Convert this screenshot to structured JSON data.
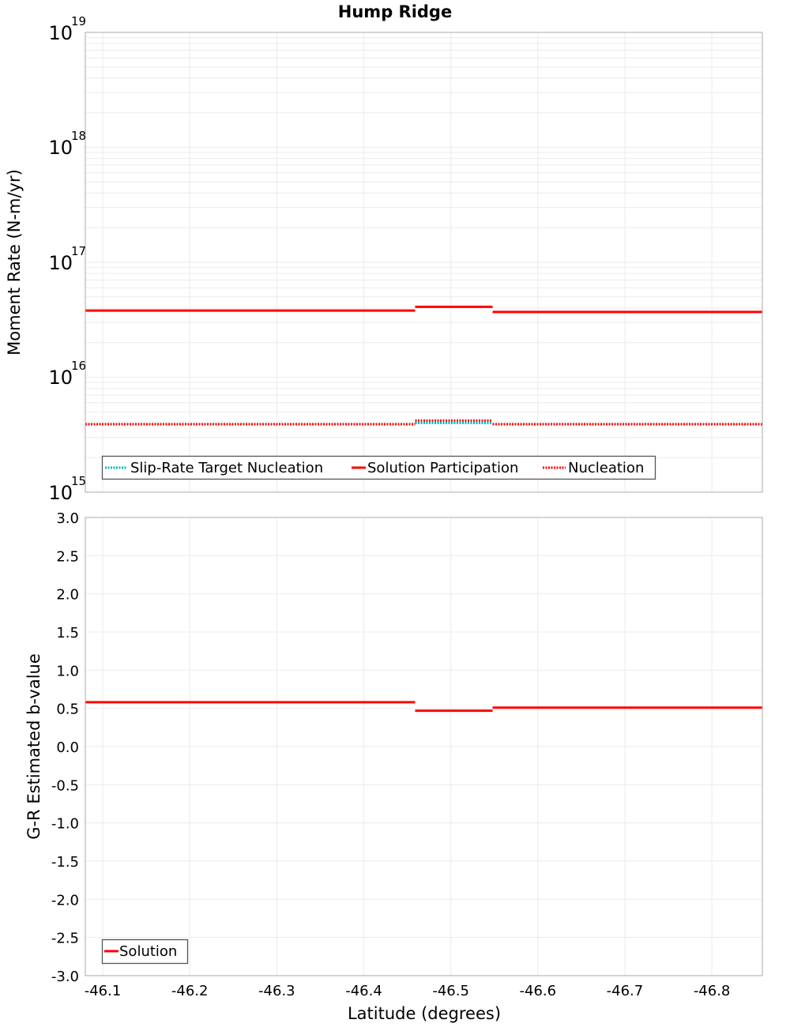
{
  "title": "Hump Ridge",
  "colors": {
    "solution": "#ff0000",
    "nucleation": "#ff0000",
    "target": "#00b7c3",
    "grid": "#ebebeb",
    "frame": "#aaaaaa"
  },
  "chart_data": [
    {
      "type": "line",
      "title": "Hump Ridge",
      "xlabel": "Latitude (degrees)",
      "ylabel": "Moment Rate (N-m/yr)",
      "yscale": "log",
      "ylim": [
        1000000000000000.0,
        1e+19
      ],
      "xlim": [
        -46.08,
        -46.858
      ],
      "y_tick_labels": [
        "10^15",
        "10^16",
        "10^17",
        "10^18",
        "10^19"
      ],
      "legend": [
        "Slip-Rate Target Nucleation",
        "Solution Participation",
        "Nucleation"
      ],
      "legend_position": "lower left",
      "grid": true,
      "series": [
        {
          "name": "Slip-Rate Target Nucleation",
          "style": "dotted",
          "color": "#00b7c3",
          "segments": [
            {
              "x": [
                -46.08,
                -46.459
              ],
              "y": 3900000000000000.0
            },
            {
              "x": [
                -46.459,
                -46.548
              ],
              "y": 4000000000000000.0
            },
            {
              "x": [
                -46.548,
                -46.858
              ],
              "y": 3900000000000000.0
            }
          ]
        },
        {
          "name": "Solution Participation",
          "style": "solid",
          "color": "#ff0000",
          "segments": [
            {
              "x": [
                -46.08,
                -46.459
              ],
              "y": 3.8e+16
            },
            {
              "x": [
                -46.459,
                -46.548
              ],
              "y": 4.1e+16
            },
            {
              "x": [
                -46.548,
                -46.858
              ],
              "y": 3.7e+16
            }
          ]
        },
        {
          "name": "Nucleation",
          "style": "dotted",
          "color": "#ff0000",
          "segments": [
            {
              "x": [
                -46.08,
                -46.459
              ],
              "y": 3900000000000000.0
            },
            {
              "x": [
                -46.459,
                -46.548
              ],
              "y": 4200000000000000.0
            },
            {
              "x": [
                -46.548,
                -46.858
              ],
              "y": 3900000000000000.0
            }
          ]
        }
      ]
    },
    {
      "type": "line",
      "title": "",
      "xlabel": "Latitude (degrees)",
      "ylabel": "G-R Estimated b-value",
      "ylim": [
        -3.0,
        3.0
      ],
      "xlim": [
        -46.08,
        -46.858
      ],
      "x_tick_labels": [
        "-46.1",
        "-46.2",
        "-46.3",
        "-46.4",
        "-46.5",
        "-46.6",
        "-46.7",
        "-46.8"
      ],
      "y_tick_labels": [
        "3.0",
        "2.5",
        "2.0",
        "1.5",
        "1.0",
        "0.5",
        "0.0",
        "-0.5",
        "-1.0",
        "-1.5",
        "-2.0",
        "-2.5",
        "-3.0"
      ],
      "legend": [
        "Solution"
      ],
      "legend_position": "lower left",
      "grid": true,
      "series": [
        {
          "name": "Solution",
          "style": "solid",
          "color": "#ff0000",
          "segments": [
            {
              "x": [
                -46.08,
                -46.459
              ],
              "y": 0.58
            },
            {
              "x": [
                -46.459,
                -46.548
              ],
              "y": 0.47
            },
            {
              "x": [
                -46.548,
                -46.858
              ],
              "y": 0.51
            }
          ]
        }
      ]
    }
  ],
  "top_chart": {
    "y_axis_label": "Moment Rate (N-m/yr)",
    "y_ticks": [
      {
        "base": "10",
        "exp": "19"
      },
      {
        "base": "10",
        "exp": "18"
      },
      {
        "base": "10",
        "exp": "17"
      },
      {
        "base": "10",
        "exp": "16"
      },
      {
        "base": "10",
        "exp": "15"
      }
    ],
    "legend": {
      "items": [
        "Slip-Rate Target Nucleation",
        "Solution Participation",
        "Nucleation"
      ]
    }
  },
  "bottom_chart": {
    "y_axis_label": "G-R Estimated b-value",
    "y_ticks": [
      "3.0",
      "2.5",
      "2.0",
      "1.5",
      "1.0",
      "0.5",
      "0.0",
      "-0.5",
      "-1.0",
      "-1.5",
      "-2.0",
      "-2.5",
      "-3.0"
    ],
    "legend": {
      "items": [
        "Solution"
      ]
    }
  },
  "x_axis": {
    "label": "Latitude (degrees)",
    "ticks": [
      "-46.1",
      "-46.2",
      "-46.3",
      "-46.4",
      "-46.5",
      "-46.6",
      "-46.7",
      "-46.8"
    ]
  }
}
